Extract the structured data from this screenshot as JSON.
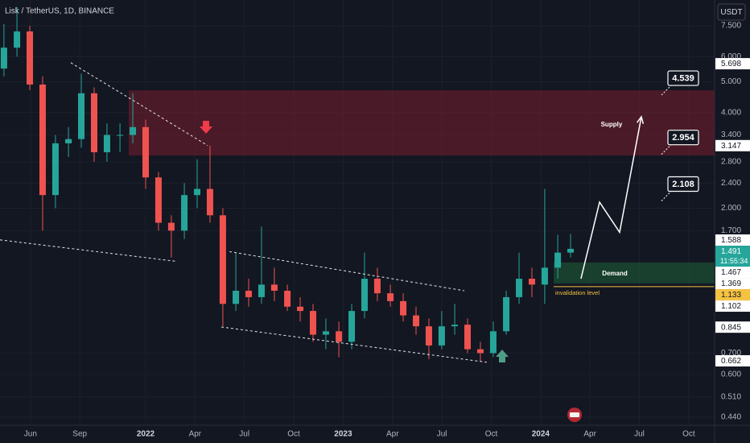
{
  "chart_data": {
    "type": "candlestick",
    "title": "Lisk / TetherUS, 1D, BINANCE",
    "y_unit": "USDT",
    "x": [
      3.39,
      4.18,
      4.96,
      5.74,
      6.52,
      7.31,
      8.09,
      8.87,
      9.65,
      10.44,
      11.22,
      12.0,
      12.78,
      13.56,
      14.35,
      15.13,
      15.91,
      16.69,
      17.48,
      18.26,
      19.04,
      19.82,
      20.61,
      21.39,
      22.17,
      22.95,
      23.74,
      24.52,
      25.3,
      26.08,
      26.87,
      27.65,
      28.43,
      29.21,
      29.99,
      30.78,
      31.56,
      32.34,
      33.12,
      33.91,
      34.69,
      35.47,
      36.25,
      37.04,
      37.82
    ],
    "open": [
      5.5,
      6.4,
      7.2,
      4.9,
      2.2,
      3.2,
      3.3,
      4.6,
      3.0,
      3.4,
      3.4,
      3.6,
      2.5,
      1.8,
      1.7,
      2.2,
      2.3,
      1.9,
      1.0,
      1.1,
      1.05,
      1.15,
      1.1,
      0.98,
      0.95,
      0.8,
      0.82,
      0.76,
      0.95,
      1.2,
      1.08,
      1.02,
      0.92,
      0.85,
      0.74,
      0.85,
      0.86,
      0.72,
      0.7,
      0.82,
      1.05,
      1.2,
      1.15,
      1.3,
      1.45
    ],
    "high": [
      7.6,
      8.6,
      7.5,
      5.2,
      3.4,
      3.6,
      5.3,
      4.8,
      3.7,
      3.7,
      4.6,
      3.8,
      2.6,
      1.9,
      2.4,
      2.85,
      3.15,
      2.0,
      1.45,
      1.2,
      1.75,
      1.3,
      1.15,
      1.05,
      1.0,
      0.9,
      0.88,
      1.0,
      1.45,
      1.3,
      1.15,
      1.08,
      0.98,
      0.9,
      0.95,
      1.0,
      0.9,
      0.76,
      0.88,
      1.1,
      1.45,
      1.3,
      2.3,
      1.65,
      1.66
    ],
    "low": [
      5.2,
      6.0,
      4.7,
      1.7,
      2.0,
      2.9,
      3.1,
      2.8,
      2.8,
      3.0,
      3.2,
      2.3,
      1.7,
      1.4,
      1.6,
      2.0,
      1.8,
      0.85,
      0.95,
      0.98,
      1.0,
      1.02,
      0.95,
      0.88,
      0.76,
      0.72,
      0.68,
      0.72,
      0.9,
      1.02,
      0.98,
      0.88,
      0.8,
      0.67,
      0.72,
      0.8,
      0.7,
      0.66,
      0.68,
      0.8,
      1.0,
      1.05,
      1.0,
      1.2,
      1.4
    ],
    "close": [
      6.4,
      7.2,
      4.9,
      2.2,
      3.2,
      3.3,
      4.6,
      3.0,
      3.4,
      3.4,
      3.6,
      2.5,
      1.8,
      1.7,
      2.2,
      2.3,
      1.9,
      1.0,
      1.1,
      1.05,
      1.15,
      1.1,
      0.98,
      0.95,
      0.8,
      0.82,
      0.76,
      0.95,
      1.2,
      1.08,
      1.02,
      0.92,
      0.85,
      0.74,
      0.85,
      0.86,
      0.72,
      0.7,
      0.82,
      1.05,
      1.2,
      1.15,
      1.3,
      1.45,
      1.49
    ],
    "up_color": "#26a69a",
    "down_color": "#ef5350",
    "xlim": [
      3.15,
      46.57
    ],
    "ylim": [
      0.415,
      9.04
    ],
    "log_scale": true,
    "grid": true,
    "xticks": [
      {
        "value": 5,
        "label": "Jun"
      },
      {
        "value": 8,
        "label": "Sep"
      },
      {
        "value": 12,
        "label": "2022"
      },
      {
        "value": 15,
        "label": "Apr"
      },
      {
        "value": 18,
        "label": "Jul"
      },
      {
        "value": 21,
        "label": "Oct"
      },
      {
        "value": 24,
        "label": "2023"
      },
      {
        "value": 27,
        "label": "Apr"
      },
      {
        "value": 30,
        "label": "Jul"
      },
      {
        "value": 33,
        "label": "Oct"
      },
      {
        "value": 36,
        "label": "2024"
      },
      {
        "value": 39,
        "label": "Apr"
      },
      {
        "value": 42,
        "label": "Jul"
      },
      {
        "value": 45,
        "label": "Oct"
      }
    ],
    "yticks": [
      {
        "value": 7.5,
        "label": "7.500"
      },
      {
        "value": 6,
        "label": "6.000"
      },
      {
        "value": 5,
        "label": "5.000"
      },
      {
        "value": 4,
        "label": "4.000"
      },
      {
        "value": 3.4,
        "label": "3.400"
      },
      {
        "value": 2.8,
        "label": "2.800"
      },
      {
        "value": 2.4,
        "label": "2.400"
      },
      {
        "value": 2,
        "label": "2.000"
      },
      {
        "value": 1.7,
        "label": "1.700"
      },
      {
        "value": 0.7,
        "label": "0.700"
      },
      {
        "value": 0.6,
        "label": "0.600"
      },
      {
        "value": 0.51,
        "label": "0.510"
      },
      {
        "value": 0.44,
        "label": "0.440"
      }
    ],
    "zones": [
      {
        "name": "Supply",
        "top": 4.7,
        "bottom": 2.93,
        "start": 10.97,
        "color": "rgba(120,30,45,0.55)"
      },
      {
        "name": "Demand",
        "top": 1.35,
        "bottom": 1.16,
        "start": 36.79,
        "color": "rgba(30,90,55,0.6)"
      }
    ],
    "invalidation": {
      "name": "invalidation level",
      "value": 1.133,
      "start": 36.79,
      "color": "#f5c242"
    },
    "trendlines": [
      {
        "x": [
          7.45,
          15.77
        ],
        "y": [
          5.74,
          3.15
        ]
      },
      {
        "x": [
          3.15,
          13.91
        ],
        "y": [
          1.59,
          1.36
        ]
      },
      {
        "x": [
          17.09,
          31.36
        ],
        "y": [
          1.46,
          1.1
        ]
      },
      {
        "x": [
          16.6,
          32.73
        ],
        "y": [
          0.846,
          0.655
        ]
      }
    ],
    "projection": {
      "x": [
        38.45,
        39.58,
        40.8,
        42.12
      ],
      "y": [
        1.2,
        2.09,
        1.68,
        3.88
      ]
    },
    "targets": [
      4.539,
      2.954,
      2.108
    ],
    "price_labels": [
      {
        "value": 5.698,
        "color": "#ffffff"
      },
      {
        "value": 3.147,
        "color": "#ffffff"
      },
      {
        "value": 1.588,
        "color": "#ffffff"
      },
      {
        "value": 1.491,
        "color": "#26a69a",
        "countdown": "11:55:34"
      },
      {
        "value": 1.467,
        "color": "#ffffff"
      },
      {
        "value": 1.369,
        "color": "#ffffff"
      },
      {
        "value": 1.133,
        "color": "#f5c242"
      },
      {
        "value": 1.102,
        "color": "#ffffff"
      },
      {
        "value": 0.845,
        "color": "#ffffff"
      },
      {
        "value": 0.662,
        "color": "#ffffff"
      }
    ]
  }
}
